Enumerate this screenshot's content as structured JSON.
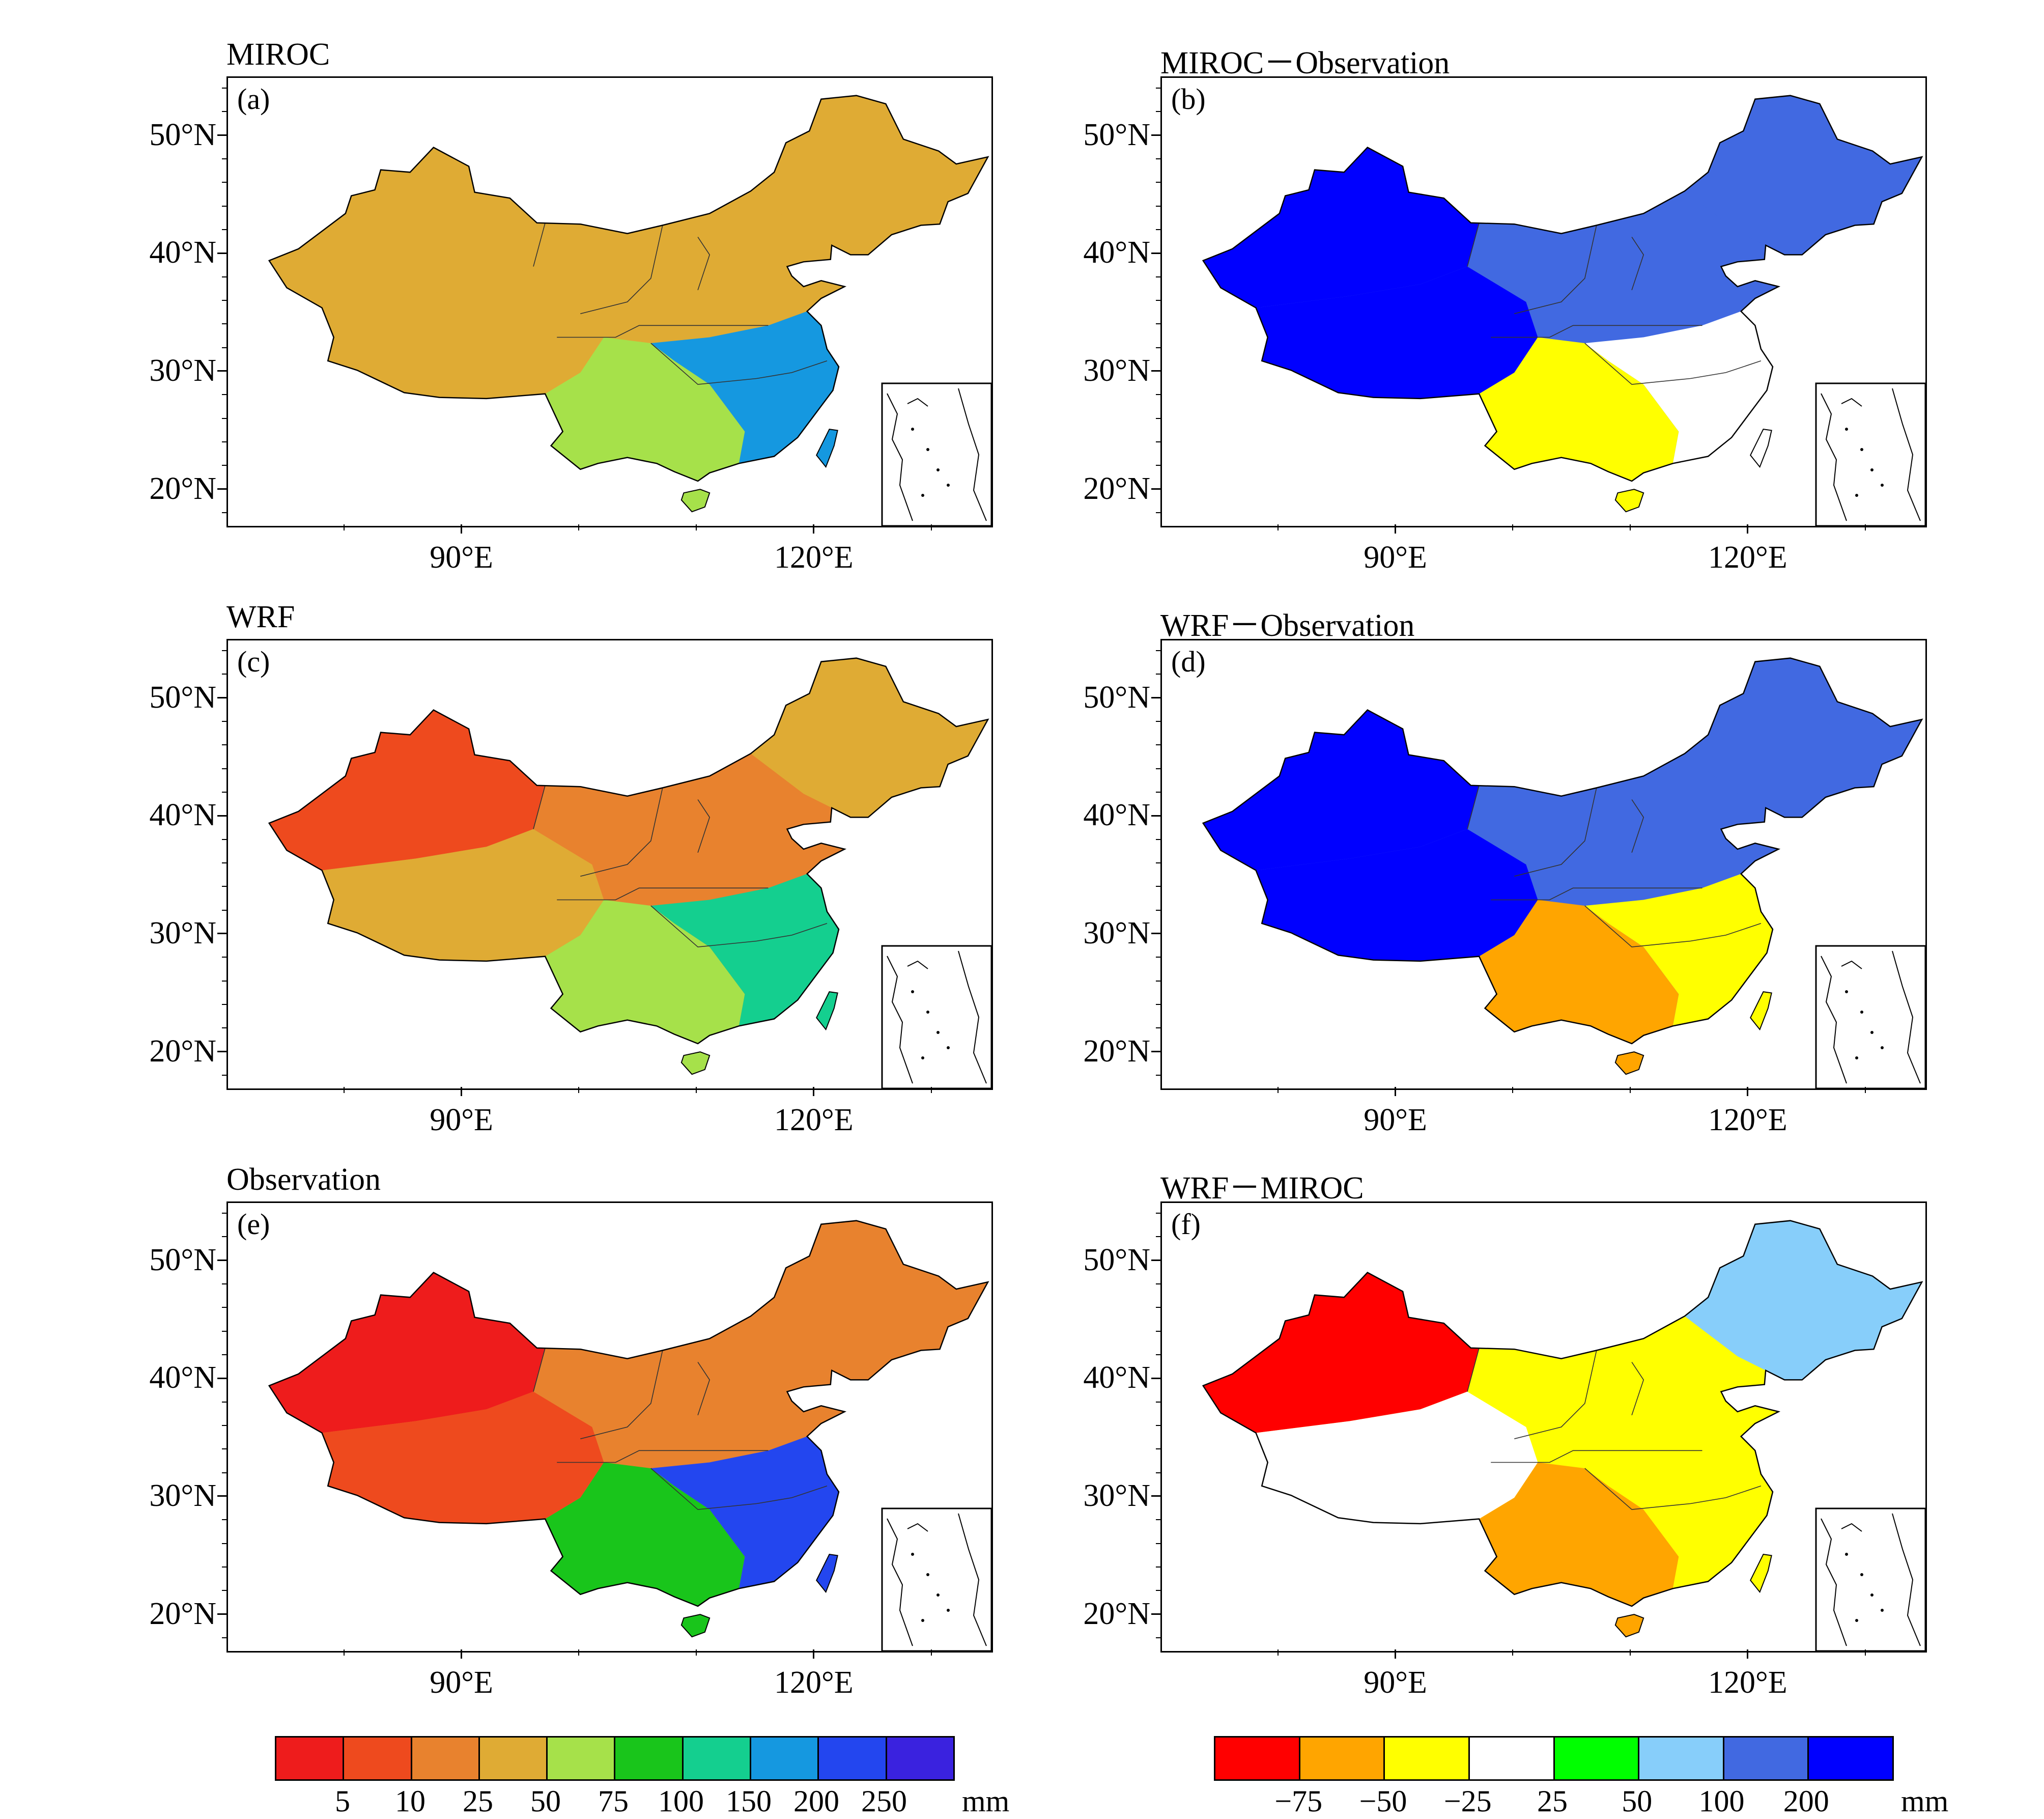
{
  "panels": [
    {
      "title": "MIROC",
      "label": "(a)",
      "scale": "abs",
      "field": "miroc"
    },
    {
      "title": "MIROC－Observation",
      "label": "(b)",
      "scale": "diff",
      "field": "miroc_obs"
    },
    {
      "title": "WRF",
      "label": "(c)",
      "scale": "abs",
      "field": "wrf"
    },
    {
      "title": "WRF－Observation",
      "label": "(d)",
      "scale": "diff",
      "field": "wrf_obs"
    },
    {
      "title": "Observation",
      "label": "(e)",
      "scale": "abs",
      "field": "obs"
    },
    {
      "title": "WRF－MIROC",
      "label": "(f)",
      "scale": "diff",
      "field": "wrf_miroc"
    }
  ],
  "axes": {
    "lat_labels": [
      "50°N",
      "40°N",
      "30°N",
      "20°N"
    ],
    "lon_labels": [
      "90°E",
      "120°E"
    ]
  },
  "colorbar_abs": {
    "colors": [
      "#ee1c1c",
      "#ee4a1e",
      "#e8822e",
      "#dfab34",
      "#a6e14a",
      "#19c51b",
      "#14cf8f",
      "#1598e0",
      "#2346ef",
      "#3a22df"
    ],
    "labels": [
      "5",
      "10",
      "25",
      "50",
      "75",
      "100",
      "150",
      "200",
      "250"
    ],
    "unit": "mm"
  },
  "colorbar_diff": {
    "colors": [
      "#ff0000",
      "#ffa500",
      "#ffff00",
      "#ffffff",
      "#00ff00",
      "#87cefa",
      "#4169e1",
      "#0000ff"
    ],
    "labels": [
      "−75",
      "−50",
      "−25",
      "25",
      "50",
      "100",
      "200"
    ],
    "unit": "mm"
  },
  "map_data": {
    "description_units": "region class per panel; regions: NW (Xinjiang), TP (Tibetan Plateau), NC (north China), NE (northeast), SC (south China), SE (southeast coast)",
    "miroc": {
      "NW": 3,
      "TP": 3,
      "NC": 3,
      "NE": 3,
      "SC": 4,
      "SE": 7
    },
    "wrf": {
      "NW": 1,
      "TP": 3,
      "NC": 2,
      "NE": 3,
      "SC": 4,
      "SE": 6
    },
    "obs": {
      "NW": 0,
      "TP": 1,
      "NC": 2,
      "NE": 2,
      "SC": 5,
      "SE": 8
    },
    "miroc_obs": {
      "NW": 7,
      "TP": 7,
      "NC": 6,
      "NE": 6,
      "SC": 2,
      "SE": 3
    },
    "wrf_obs": {
      "NW": 7,
      "TP": 7,
      "NC": 6,
      "NE": 6,
      "SC": 1,
      "SE": 2
    },
    "wrf_miroc": {
      "NW": 0,
      "TP": 3,
      "NC": 2,
      "NE": 5,
      "SC": 1,
      "SE": 2
    }
  }
}
